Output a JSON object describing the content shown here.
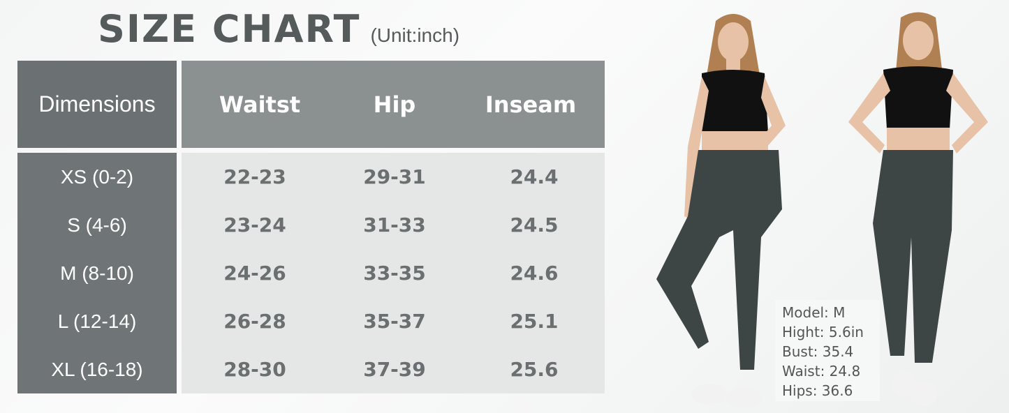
{
  "title": {
    "main": "SIZE CHART",
    "unit": "(Unit:inch)"
  },
  "table": {
    "headers": [
      "Dimensions",
      "Waitst",
      "Hip",
      "Inseam"
    ],
    "rows": [
      {
        "size": "XS  (0-2)",
        "waist": "22-23",
        "hip": "29-31",
        "inseam": "24.4"
      },
      {
        "size": "S  (4-6)",
        "waist": "23-24",
        "hip": "31-33",
        "inseam": "24.5"
      },
      {
        "size": "M  (8-10)",
        "waist": "24-26",
        "hip": "33-35",
        "inseam": "24.6"
      },
      {
        "size": "L  (12-14)",
        "waist": "26-28",
        "hip": "35-37",
        "inseam": "25.1"
      },
      {
        "size": "XL  (16-18)",
        "waist": "28-30",
        "hip": "37-39",
        "inseam": "25.6"
      }
    ]
  },
  "model_info": [
    "Model:  M",
    "Hight:  5.6in",
    "Bust:  35.4",
    "Waist:  24.8",
    "Hips:  36.6"
  ],
  "colors": {
    "title": "#555b5b",
    "dim_header": "#6b7072",
    "col_header": "#8b9190",
    "value_bg": "#e5e6e6",
    "leggings": "#3e4645",
    "top": "#111111"
  }
}
